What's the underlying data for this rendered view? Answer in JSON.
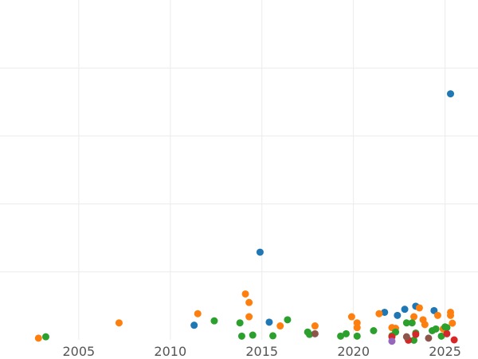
{
  "chart_data": {
    "type": "scatter",
    "title": "",
    "xlabel": "",
    "ylabel": "",
    "xlim": [
      2000.7,
      2026.8
    ],
    "ylim": [
      0,
      100
    ],
    "grid": true,
    "legend": "none",
    "x_ticks": [
      2005,
      2010,
      2015,
      2020,
      2025
    ],
    "y_gridlines": [
      20,
      40,
      60,
      80
    ],
    "series": [
      {
        "color": "#1f77b4",
        "points": [
          {
            "x": 2025.3,
            "y": 72.4
          },
          {
            "x": 2014.9,
            "y": 25.8
          },
          {
            "x": 2011.3,
            "y": 4.3
          },
          {
            "x": 2015.4,
            "y": 5.2
          },
          {
            "x": 2021.7,
            "y": 8.1
          },
          {
            "x": 2022.4,
            "y": 7.2
          },
          {
            "x": 2022.8,
            "y": 9.0
          },
          {
            "x": 2023.4,
            "y": 9.9
          },
          {
            "x": 2024.4,
            "y": 8.6
          }
        ]
      },
      {
        "color": "#ff7f0e",
        "points": [
          {
            "x": 2002.8,
            "y": 0.5
          },
          {
            "x": 2007.2,
            "y": 5.0
          },
          {
            "x": 2011.5,
            "y": 7.7
          },
          {
            "x": 2014.1,
            "y": 13.5
          },
          {
            "x": 2014.3,
            "y": 11.0
          },
          {
            "x": 2014.3,
            "y": 6.8
          },
          {
            "x": 2016.0,
            "y": 4.1
          },
          {
            "x": 2017.9,
            "y": 4.1
          },
          {
            "x": 2019.9,
            "y": 6.8
          },
          {
            "x": 2020.2,
            "y": 5.0
          },
          {
            "x": 2020.2,
            "y": 3.6
          },
          {
            "x": 2021.4,
            "y": 7.7
          },
          {
            "x": 2022.1,
            "y": 3.6
          },
          {
            "x": 2022.3,
            "y": 3.4
          },
          {
            "x": 2023.3,
            "y": 6.8
          },
          {
            "x": 2023.6,
            "y": 9.4
          },
          {
            "x": 2023.8,
            "y": 5.9
          },
          {
            "x": 2023.9,
            "y": 4.5
          },
          {
            "x": 2024.6,
            "y": 7.2
          },
          {
            "x": 2025.3,
            "y": 8.1
          },
          {
            "x": 2025.3,
            "y": 7.2
          },
          {
            "x": 2025.4,
            "y": 4.9
          },
          {
            "x": 2024.9,
            "y": 3.2
          }
        ]
      },
      {
        "color": "#2ca02c",
        "points": [
          {
            "x": 2003.2,
            "y": 0.9
          },
          {
            "x": 2012.4,
            "y": 5.6
          },
          {
            "x": 2013.8,
            "y": 5.0
          },
          {
            "x": 2013.9,
            "y": 1.1
          },
          {
            "x": 2014.5,
            "y": 1.4
          },
          {
            "x": 2015.6,
            "y": 1.2
          },
          {
            "x": 2016.4,
            "y": 5.9
          },
          {
            "x": 2017.5,
            "y": 2.3
          },
          {
            "x": 2017.6,
            "y": 1.6
          },
          {
            "x": 2019.3,
            "y": 1.1
          },
          {
            "x": 2019.6,
            "y": 1.8
          },
          {
            "x": 2020.2,
            "y": 1.1
          },
          {
            "x": 2021.1,
            "y": 2.7
          },
          {
            "x": 2022.1,
            "y": 1.2
          },
          {
            "x": 2022.3,
            "y": 2.3
          },
          {
            "x": 2022.9,
            "y": 5.0
          },
          {
            "x": 2023.2,
            "y": 5.0
          },
          {
            "x": 2023.3,
            "y": -0.1
          },
          {
            "x": 2023.4,
            "y": 2.0
          },
          {
            "x": 2024.3,
            "y": 2.7
          },
          {
            "x": 2024.5,
            "y": 3.2
          },
          {
            "x": 2024.8,
            "y": 1.1
          },
          {
            "x": 2025.0,
            "y": 3.8
          },
          {
            "x": 2025.1,
            "y": 3.6
          }
        ]
      },
      {
        "color": "#d62728",
        "points": [
          {
            "x": 2022.1,
            "y": 0.9
          },
          {
            "x": 2023.0,
            "y": -0.1
          },
          {
            "x": 2023.4,
            "y": 1.6
          },
          {
            "x": 2025.1,
            "y": 1.8
          },
          {
            "x": 2025.5,
            "y": 0.0
          }
        ]
      },
      {
        "color": "#9467bd",
        "points": [
          {
            "x": 2022.1,
            "y": -0.4
          }
        ]
      },
      {
        "color": "#8c564b",
        "points": [
          {
            "x": 2017.9,
            "y": 1.8
          },
          {
            "x": 2022.9,
            "y": 0.9
          },
          {
            "x": 2024.1,
            "y": 0.5
          }
        ]
      }
    ]
  }
}
